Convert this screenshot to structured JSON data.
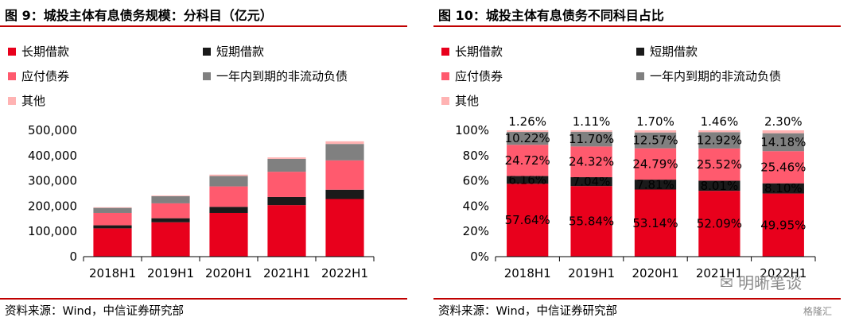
{
  "left": {
    "title": "图 9：城投主体有息债务规模：分科目（亿元）",
    "source": "资料来源：Wind，中信证券研究部"
  },
  "right": {
    "title": "图 10：城投主体有息债务不同科目占比",
    "source": "资料来源：Wind，中信证券研究部"
  },
  "watermark": {
    "text": "明晰笔谈",
    "sub": "格隆汇"
  },
  "colors": {
    "long_loans": "#e8001c",
    "short_loans": "#1a1a1a",
    "bonds_payable": "#ff5a6e",
    "noncurrent_due": "#808080",
    "other": "#ffb3b3",
    "accent_rule": "#c00000"
  },
  "chart_data": [
    {
      "type": "bar",
      "stacked": true,
      "categories": [
        "2018H1",
        "2019H1",
        "2020H1",
        "2021H1",
        "2022H1"
      ],
      "series": [
        {
          "name": "长期借款",
          "values": [
            112000,
            136000,
            173000,
            204000,
            228000
          ]
        },
        {
          "name": "短期借款",
          "values": [
            12000,
            16000,
            24000,
            32000,
            37000
          ]
        },
        {
          "name": "应付债券",
          "values": [
            49000,
            59000,
            81000,
            100000,
            116000
          ]
        },
        {
          "name": "一年内到期的非流动负债",
          "values": [
            20000,
            28000,
            41000,
            51000,
            65000
          ]
        },
        {
          "name": "其他",
          "values": [
            2500,
            2700,
            5600,
            5700,
            10500
          ]
        }
      ],
      "yticks": [
        "0",
        "100,000",
        "200,000",
        "300,000",
        "400,000",
        "500,000"
      ],
      "ylim": [
        0,
        500000
      ],
      "legend": "top",
      "grid": false
    },
    {
      "type": "bar",
      "stacked": true,
      "percent": true,
      "categories": [
        "2018H1",
        "2019H1",
        "2020H1",
        "2021H1",
        "2022H1"
      ],
      "series": [
        {
          "name": "长期借款",
          "values": [
            57.64,
            55.84,
            53.14,
            52.09,
            49.95
          ],
          "labels": [
            "57.64%",
            "55.84%",
            "53.14%",
            "52.09%",
            "49.95%"
          ]
        },
        {
          "name": "短期借款",
          "values": [
            6.16,
            7.04,
            7.81,
            8.01,
            8.1
          ],
          "labels": [
            "6.16%",
            "7.04%",
            "7.81%",
            "8.01%",
            "8.10%"
          ]
        },
        {
          "name": "应付债券",
          "values": [
            24.72,
            24.32,
            24.79,
            25.52,
            25.46
          ],
          "labels": [
            "24.72%",
            "24.32%",
            "24.79%",
            "25.52%",
            "25.46%"
          ]
        },
        {
          "name": "一年内到期的非流动负债",
          "values": [
            10.22,
            11.7,
            12.57,
            12.92,
            14.18
          ],
          "labels": [
            "10.22%",
            "11.70%",
            "12.57%",
            "12.92%",
            "14.18%"
          ]
        },
        {
          "name": "其他",
          "values": [
            1.26,
            1.11,
            1.7,
            1.46,
            2.3
          ],
          "labels": [
            "1.26%",
            "1.11%",
            "1.70%",
            "1.46%",
            "2.30%"
          ]
        }
      ],
      "yticks": [
        "0%",
        "20%",
        "40%",
        "60%",
        "80%",
        "100%"
      ],
      "ylim": [
        0,
        100
      ],
      "legend": "top",
      "grid": false
    }
  ]
}
